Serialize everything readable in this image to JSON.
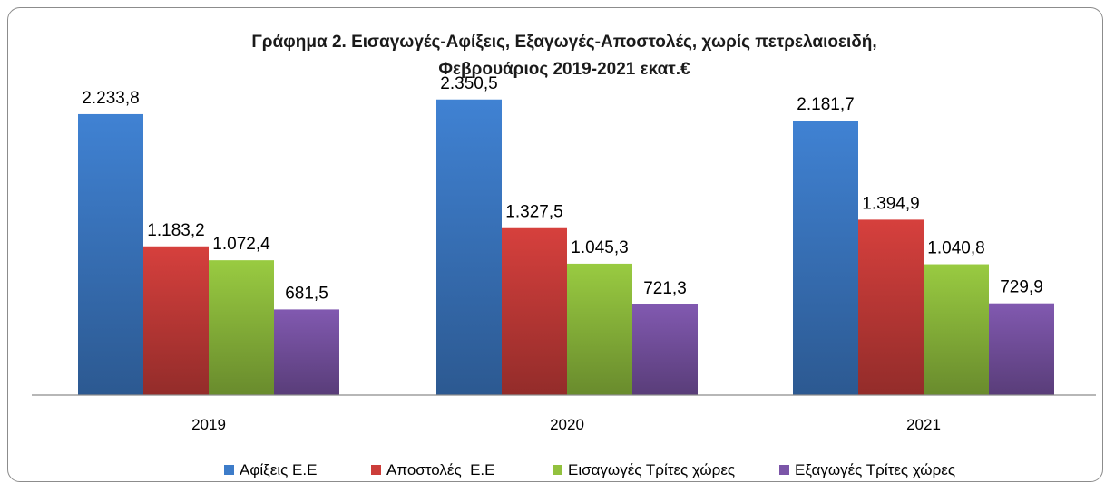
{
  "chart_data": {
    "type": "bar",
    "title_lines": [
      "Γράφημα 2. Εισαγωγές-Αφίξεις, Εξαγωγές-Αποστολές, χωρίς πετρελαιοειδή,",
      "Φεβρουάριος 2019-2021 εκατ.€"
    ],
    "categories": [
      "2019",
      "2020",
      "2021"
    ],
    "series": [
      {
        "name": "Αφίξεις Ε.Ε",
        "values": [
          2233.8,
          2350.5,
          2181.7
        ],
        "labels": [
          "2.233,8",
          "2.350,5",
          "2.181,7"
        ],
        "color": "#3d7cc9"
      },
      {
        "name": "Αποστολές  Ε.Ε",
        "values": [
          1183.2,
          1327.5,
          1394.9
        ],
        "labels": [
          "1.183,2",
          "1.327,5",
          "1.394,9"
        ],
        "color": "#cc3d3a"
      },
      {
        "name": "Εισαγωγές Τρίτες χώρες",
        "values": [
          1072.4,
          1045.3,
          1040.8
        ],
        "labels": [
          "1.072,4",
          "1.045,3",
          "1.040,8"
        ],
        "color": "#92c13e"
      },
      {
        "name": "Εξαγωγές Τρίτες χώρες",
        "values": [
          681.5,
          721.3,
          729.9
        ],
        "labels": [
          "681,5",
          "721,3",
          "729,9"
        ],
        "color": "#7b55a8"
      }
    ],
    "ylim": [
      0,
      2500
    ],
    "grid": false,
    "legend": "bottom"
  }
}
